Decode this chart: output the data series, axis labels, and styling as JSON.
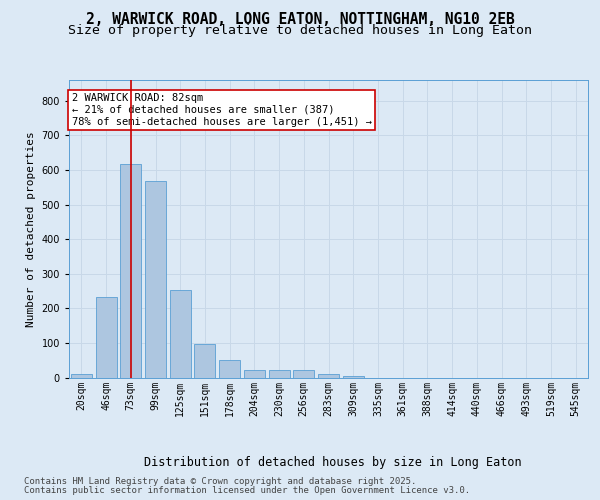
{
  "title_line1": "2, WARWICK ROAD, LONG EATON, NOTTINGHAM, NG10 2EB",
  "title_line2": "Size of property relative to detached houses in Long Eaton",
  "xlabel": "Distribution of detached houses by size in Long Eaton",
  "ylabel": "Number of detached properties",
  "categories": [
    "20sqm",
    "46sqm",
    "73sqm",
    "99sqm",
    "125sqm",
    "151sqm",
    "178sqm",
    "204sqm",
    "230sqm",
    "256sqm",
    "283sqm",
    "309sqm",
    "335sqm",
    "361sqm",
    "388sqm",
    "414sqm",
    "440sqm",
    "466sqm",
    "493sqm",
    "519sqm",
    "545sqm"
  ],
  "values": [
    10,
    232,
    618,
    568,
    252,
    98,
    50,
    23,
    23,
    23,
    10,
    5,
    0,
    0,
    0,
    0,
    0,
    0,
    0,
    0,
    0
  ],
  "bar_color": "#adc6e0",
  "bar_edge_color": "#5a9fd4",
  "grid_color": "#c8d8e8",
  "background_color": "#dce9f5",
  "vline_x_index": 2,
  "vline_color": "#cc0000",
  "annotation_text": "2 WARWICK ROAD: 82sqm\n← 21% of detached houses are smaller (387)\n78% of semi-detached houses are larger (1,451) →",
  "annotation_box_color": "#ffffff",
  "annotation_box_edge": "#cc0000",
  "ylim": [
    0,
    860
  ],
  "yticks": [
    0,
    100,
    200,
    300,
    400,
    500,
    600,
    700,
    800
  ],
  "footer_line1": "Contains HM Land Registry data © Crown copyright and database right 2025.",
  "footer_line2": "Contains public sector information licensed under the Open Government Licence v3.0.",
  "title_fontsize": 10.5,
  "subtitle_fontsize": 9.5,
  "xlabel_fontsize": 8.5,
  "ylabel_fontsize": 8,
  "tick_fontsize": 7,
  "footer_fontsize": 6.5,
  "annot_fontsize": 7.5
}
